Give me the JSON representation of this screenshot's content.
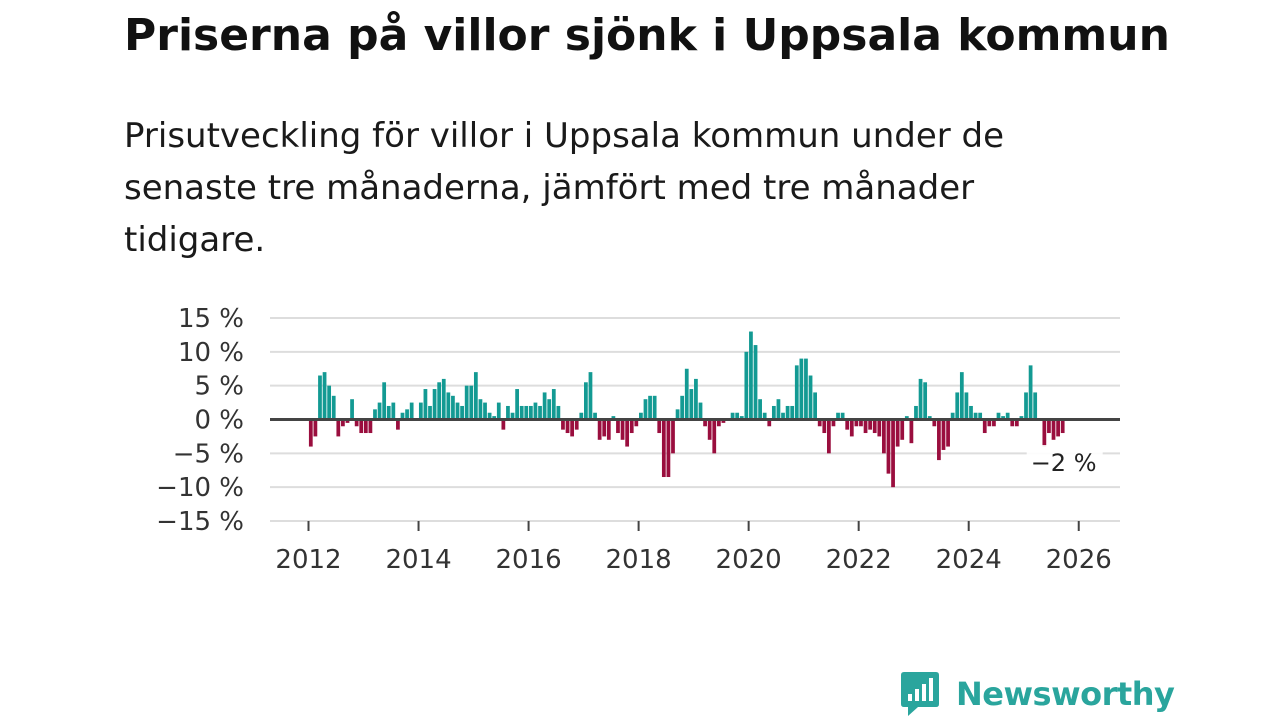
{
  "title": "Priserna på villor sjönk i Uppsala kommun",
  "subtitle": "Prisutveckling för villor i Uppsala kommun under de senaste tre månaderna, jämfört med tre månader tidigare.",
  "brand": {
    "name": "Newsworthy",
    "color": "#2aa59d",
    "icon": "newsworthy-logo-icon"
  },
  "colors": {
    "positive": "#139a93",
    "negative": "#9a0e3e",
    "grid": "#dddddd",
    "zero": "#444444",
    "axis_text": "#333333"
  },
  "chart_data": {
    "type": "bar",
    "title": "Priserna på villor sjönk i Uppsala kommun",
    "xlabel": "",
    "ylabel": "",
    "unit": "%",
    "xlim": [
      2011.3,
      2026.75
    ],
    "ylim": [
      -15,
      15
    ],
    "y_ticks": [
      15,
      10,
      5,
      0,
      -5,
      -10,
      -15
    ],
    "y_tick_labels": [
      "15 %",
      "10 %",
      "5 %",
      "0 %",
      "−5 %",
      "−10 %",
      "−15 %"
    ],
    "x_ticks": [
      2012,
      2014,
      2016,
      2018,
      2020,
      2022,
      2024,
      2026
    ],
    "x_tick_labels": [
      "2012",
      "2014",
      "2016",
      "2018",
      "2020",
      "2022",
      "2024",
      "2026"
    ],
    "series": [
      {
        "name": "Prisutveckling",
        "start": 2012.0,
        "step_months": 1,
        "values": [
          -4,
          -2.5,
          6.5,
          7,
          5,
          3.5,
          -2.5,
          -1,
          -0.5,
          3,
          -1,
          -2,
          -2,
          -2,
          1.5,
          2.5,
          5.5,
          2,
          2.5,
          -1.5,
          1,
          1.5,
          2.5,
          0,
          2.5,
          4.5,
          2,
          4.5,
          5.5,
          6,
          4,
          3.5,
          2.5,
          2,
          5,
          5,
          7,
          3,
          2.5,
          1,
          0.5,
          2.5,
          -1.5,
          2,
          1,
          4.5,
          2,
          2,
          2,
          2.5,
          2,
          4,
          3,
          4.5,
          2,
          -1.5,
          -2,
          -2.5,
          -1.5,
          1,
          5.5,
          7,
          1,
          -3,
          -2.5,
          -3,
          0.5,
          -2,
          -3,
          -4,
          -2,
          -1,
          1,
          3,
          3.5,
          3.5,
          -2,
          -8.5,
          -8.5,
          -5,
          1.5,
          3.5,
          7.5,
          4.5,
          6,
          2.5,
          -1,
          -3,
          -5,
          -1,
          -0.5,
          0,
          1,
          1,
          0.5,
          10,
          13,
          11,
          3,
          1,
          -1,
          2,
          3,
          1,
          2,
          2,
          8,
          9,
          9,
          6.5,
          4,
          -1,
          -2,
          -5,
          -1,
          1,
          1,
          -1.5,
          -2.5,
          -1,
          -1,
          -2,
          -1.5,
          -2,
          -2.5,
          -5,
          -8,
          -10,
          -4,
          -3,
          0.5,
          -3.5,
          2,
          6,
          5.5,
          0.5,
          -1,
          -6,
          -4.5,
          -4,
          1,
          4,
          7,
          4,
          2,
          1,
          1,
          -2,
          -1,
          -1,
          1,
          0.5,
          1,
          -1,
          -1,
          0.5,
          4,
          8,
          4,
          0,
          -4,
          -2,
          -3,
          -2.5,
          -2
        ]
      }
    ],
    "annotation": {
      "label": "−2 %",
      "target": "last-value"
    }
  }
}
